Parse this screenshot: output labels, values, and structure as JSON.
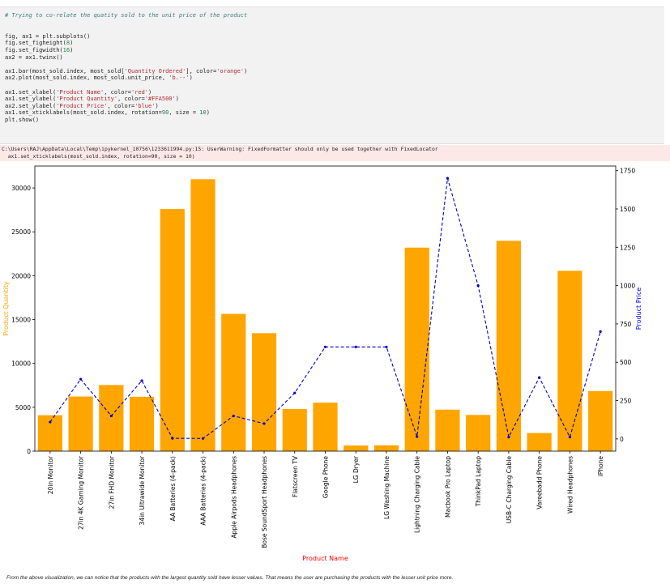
{
  "code_lines": [
    "# Trying to co-relate the quatity sold to the unit price of the product",
    "",
    "",
    "fig, ax1 = plt.subplots()",
    "fig.set_figheight(8)",
    "fig.set_figwidth(16)",
    "ax2 = ax1.twinx()",
    "",
    "ax1.bar(most_sold.index, most_sold['Quantity Ordered'], color='orange')",
    "ax2.plot(most_sold.index, most_sold.unit_price, 'b.--')",
    "",
    "ax1.set_xlabel('Product Name', color='red')",
    "ax1.set_ylabel('Product Quantity', color='#FFA500')",
    "ax2.set_ylabel('Product Price', color='blue')",
    "ax1.set_xticklabels(most_sold.index, rotation=90, size = 10)",
    "plt.show()"
  ],
  "stderr_lines": [
    "C:\\Users\\RAJ\\AppData\\Local\\Temp\\ipykernel_10756\\1233611994.py:15: UserWarning: FixedFormatter should only be used together with FixedLocator",
    "  ax1.set_xticklabels(most_sold.index, rotation=90, size = 10)"
  ],
  "chart_data": {
    "type": "bar",
    "xlabel": "Product Name",
    "ylabel": "Product Quantity",
    "y2label": "Product Price",
    "colors": {
      "bar": "#FFA500",
      "line": "#0000cc",
      "xlabel": "#ff0000",
      "ylabel": "#FFA500",
      "y2label": "#0000ff"
    },
    "categories": [
      "20in Monitor",
      "27in 4K Gaming Monitor",
      "27in FHD Monitor",
      "34in Ultrawide Monitor",
      "AA Batteries (4-pack)",
      "AAA Batteries (4-pack)",
      "Apple Airpods Headphones",
      "Bose SoundSport Headphones",
      "Flatscreen TV",
      "Google Phone",
      "LG Dryer",
      "LG Washing Machine",
      "Lightning Charging Cable",
      "Macbook Pro Laptop",
      "ThinkPad Laptop",
      "USB-C Charging Cable",
      "Vareebadd Phone",
      "Wired Headphones",
      "iPhone"
    ],
    "series": [
      {
        "axis": "left",
        "values": [
          4100,
          6230,
          7540,
          6200,
          27600,
          31000,
          15650,
          13450,
          4800,
          5530,
          650,
          670,
          23200,
          4730,
          4130,
          23980,
          2070,
          20560,
          6850
        ]
      },
      {
        "axis": "right",
        "values": [
          110,
          390,
          150,
          380,
          4,
          3,
          150,
          100,
          300,
          600,
          600,
          600,
          15,
          1700,
          1000,
          12,
          400,
          12,
          700
        ]
      }
    ],
    "ylim": [
      0,
      32500
    ],
    "y2lim": [
      -80,
      1780
    ],
    "yticks": [
      0,
      5000,
      10000,
      15000,
      20000,
      25000,
      30000
    ],
    "y2ticks": [
      0,
      250,
      500,
      750,
      1000,
      1250,
      1500,
      1750
    ]
  },
  "note": "From the above visualization, we can notice that the products with the largest quantity sold have lesser values. That means the user are purchasing the products with the lesser unit price more."
}
